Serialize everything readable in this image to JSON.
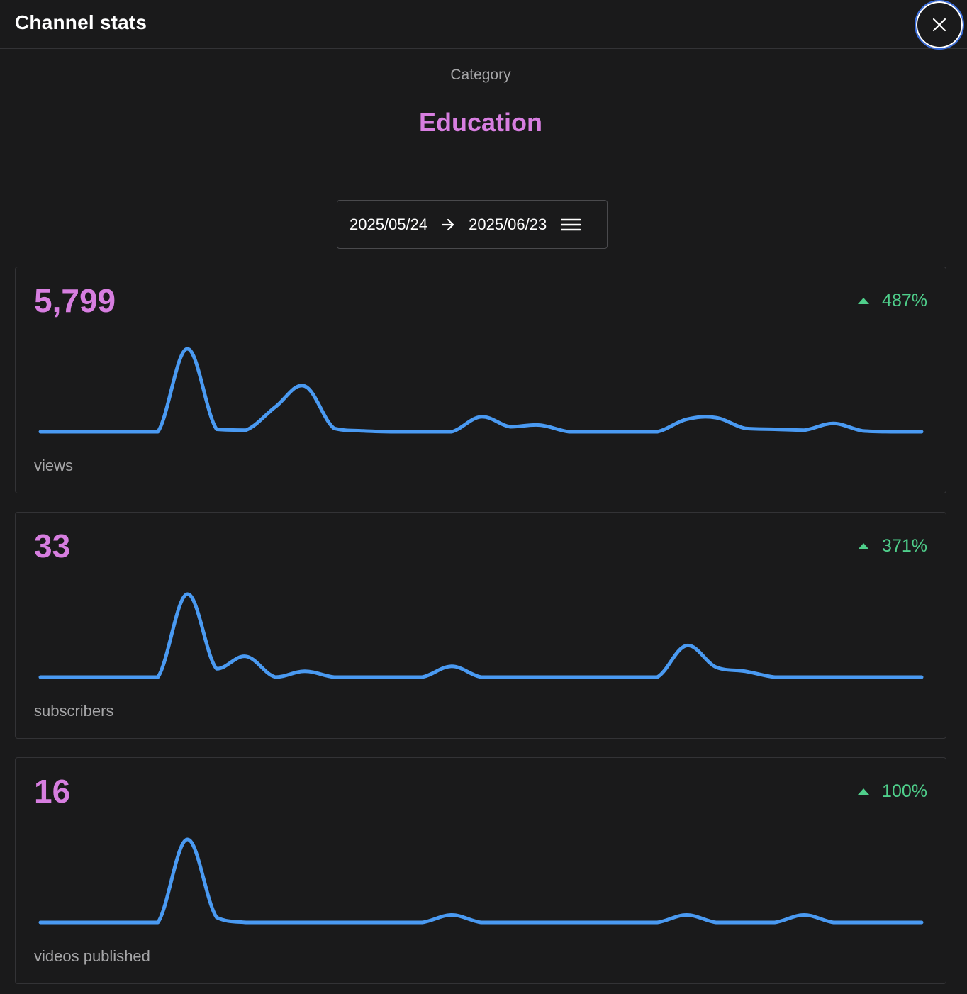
{
  "header": {
    "title": "Channel stats",
    "close_icon": "close-icon"
  },
  "category": {
    "label": "Category",
    "value": "Education"
  },
  "date_range": {
    "start": "2025/05/24",
    "end": "2025/06/23",
    "arrow_icon": "arrow-right-icon",
    "menu_icon": "menu-icon"
  },
  "colors": {
    "accent": "#d77ee0",
    "line": "#4a9af2",
    "positive": "#4fcf8b",
    "background": "#1a1a1b"
  },
  "cards": [
    {
      "value": "5,799",
      "change": "487%",
      "trend_icon": "triangle-up-icon",
      "label": "views"
    },
    {
      "value": "33",
      "change": "371%",
      "trend_icon": "triangle-up-icon",
      "label": "subscribers"
    },
    {
      "value": "16",
      "change": "100%",
      "trend_icon": "triangle-up-icon",
      "label": "videos published"
    }
  ],
  "chart_data": [
    {
      "type": "line",
      "series": [
        {
          "values": [
            0,
            0,
            0,
            0,
            0,
            1,
            0.03,
            0.02,
            0.3,
            0.55,
            0.04,
            0.01,
            0,
            0,
            0,
            0.18,
            0.06,
            0.08,
            0,
            0,
            0,
            0,
            0.15,
            0.17,
            0.04,
            0.03,
            0.02,
            0.1,
            0.01,
            0,
            0
          ]
        }
      ]
    },
    {
      "type": "line",
      "series": [
        {
          "values": [
            0,
            0,
            0,
            0,
            0,
            1,
            0.1,
            0.25,
            0,
            0.07,
            0,
            0,
            0,
            0,
            0.13,
            0,
            0,
            0,
            0,
            0,
            0,
            0,
            0.38,
            0.12,
            0.07,
            0,
            0,
            0,
            0,
            0,
            0
          ]
        }
      ]
    },
    {
      "type": "line",
      "series": [
        {
          "values": [
            0,
            0,
            0,
            0,
            0,
            1,
            0.06,
            0,
            0,
            0,
            0,
            0,
            0,
            0,
            0.09,
            0,
            0,
            0,
            0,
            0,
            0,
            0,
            0.09,
            0,
            0,
            0,
            0.09,
            0,
            0,
            0,
            0
          ]
        }
      ]
    }
  ]
}
